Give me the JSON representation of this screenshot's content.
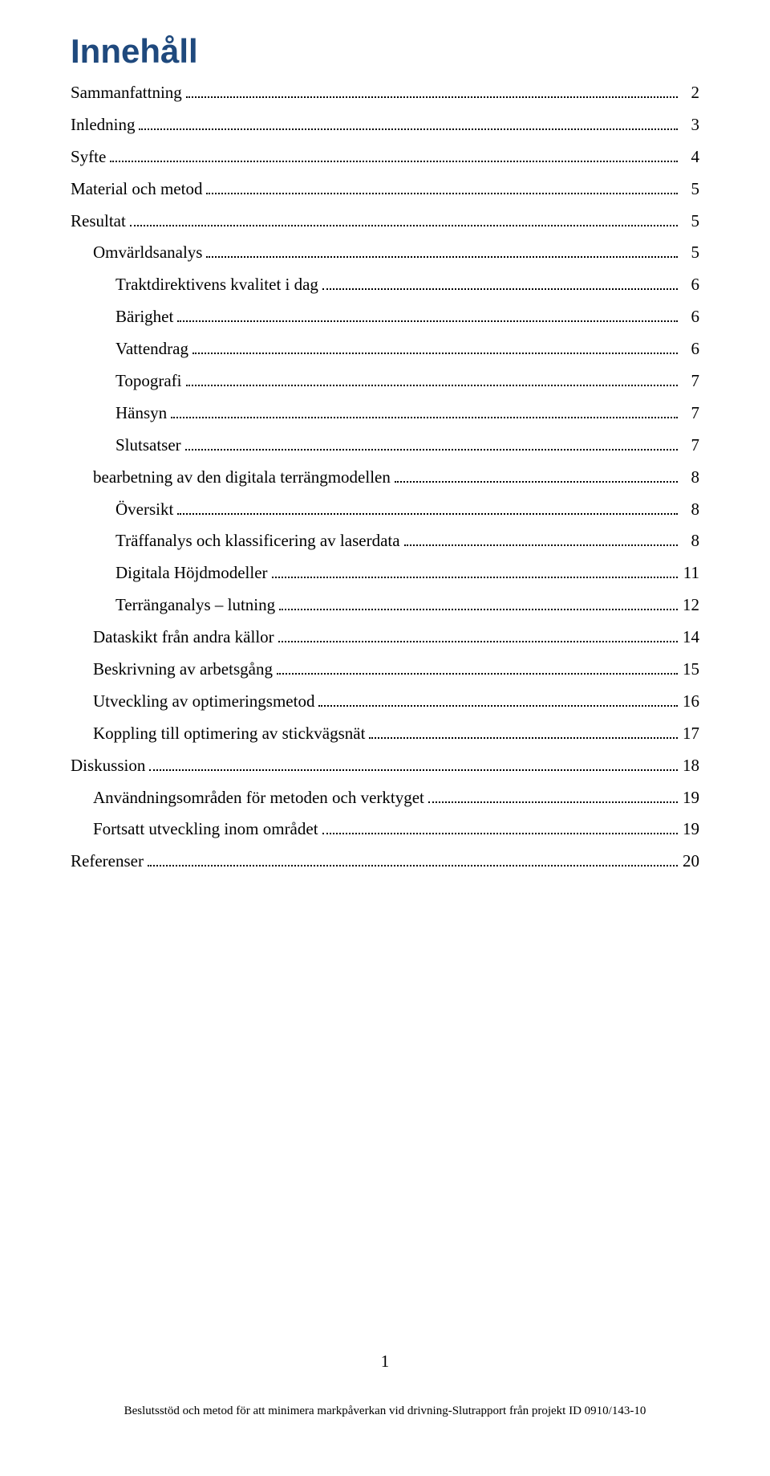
{
  "title": "Innehåll",
  "toc": [
    {
      "label": "Sammanfattning",
      "page": "2",
      "indent": 0
    },
    {
      "label": "Inledning",
      "page": "3",
      "indent": 0
    },
    {
      "label": "Syfte",
      "page": "4",
      "indent": 0
    },
    {
      "label": "Material och metod",
      "page": "5",
      "indent": 0
    },
    {
      "label": "Resultat",
      "page": "5",
      "indent": 0
    },
    {
      "label": "Omvärldsanalys",
      "page": "5",
      "indent": 1
    },
    {
      "label": "Traktdirektivens kvalitet i dag",
      "page": "6",
      "indent": 2
    },
    {
      "label": "Bärighet",
      "page": "6",
      "indent": 2
    },
    {
      "label": "Vattendrag",
      "page": "6",
      "indent": 2
    },
    {
      "label": "Topografi",
      "page": "7",
      "indent": 2
    },
    {
      "label": "Hänsyn",
      "page": "7",
      "indent": 2
    },
    {
      "label": "Slutsatser",
      "page": "7",
      "indent": 2
    },
    {
      "label": "bearbetning av den digitala terrängmodellen",
      "page": "8",
      "indent": 1
    },
    {
      "label": "Översikt",
      "page": "8",
      "indent": 2
    },
    {
      "label": "Träffanalys och klassificering av laserdata",
      "page": "8",
      "indent": 2
    },
    {
      "label": "Digitala Höjdmodeller",
      "page": "11",
      "indent": 2
    },
    {
      "label": "Terränganalys – lutning",
      "page": "12",
      "indent": 2
    },
    {
      "label": "Dataskikt från andra källor",
      "page": "14",
      "indent": 1
    },
    {
      "label": "Beskrivning av arbetsgång",
      "page": "15",
      "indent": 1
    },
    {
      "label": "Utveckling av optimeringsmetod",
      "page": "16",
      "indent": 1
    },
    {
      "label": "Koppling till optimering av stickvägsnät",
      "page": "17",
      "indent": 1
    },
    {
      "label": "Diskussion",
      "page": "18",
      "indent": 0
    },
    {
      "label": "Användningsområden för metoden och verktyget",
      "page": "19",
      "indent": 1
    },
    {
      "label": "Fortsatt utveckling inom området",
      "page": "19",
      "indent": 1
    },
    {
      "label": "Referenser",
      "page": "20",
      "indent": 0
    }
  ],
  "pageNumber": "1",
  "footer": "Beslutsstöd och metod för att minimera markpåverkan vid drivning-Slutrapport från projekt ID 0910/143-10",
  "colors": {
    "titleColor": "#1f497d",
    "textColor": "#000000",
    "background": "#ffffff"
  },
  "typography": {
    "titleFontFamily": "Arial",
    "titleFontSize": 42,
    "titleWeight": 700,
    "bodyFontFamily": "Garamond",
    "bodyFontSize": 21,
    "footerFontSize": 15,
    "lineHeight": 1.9
  },
  "layout": {
    "pageWidth": 960,
    "pageHeight": 1838,
    "indentStep": 28
  }
}
